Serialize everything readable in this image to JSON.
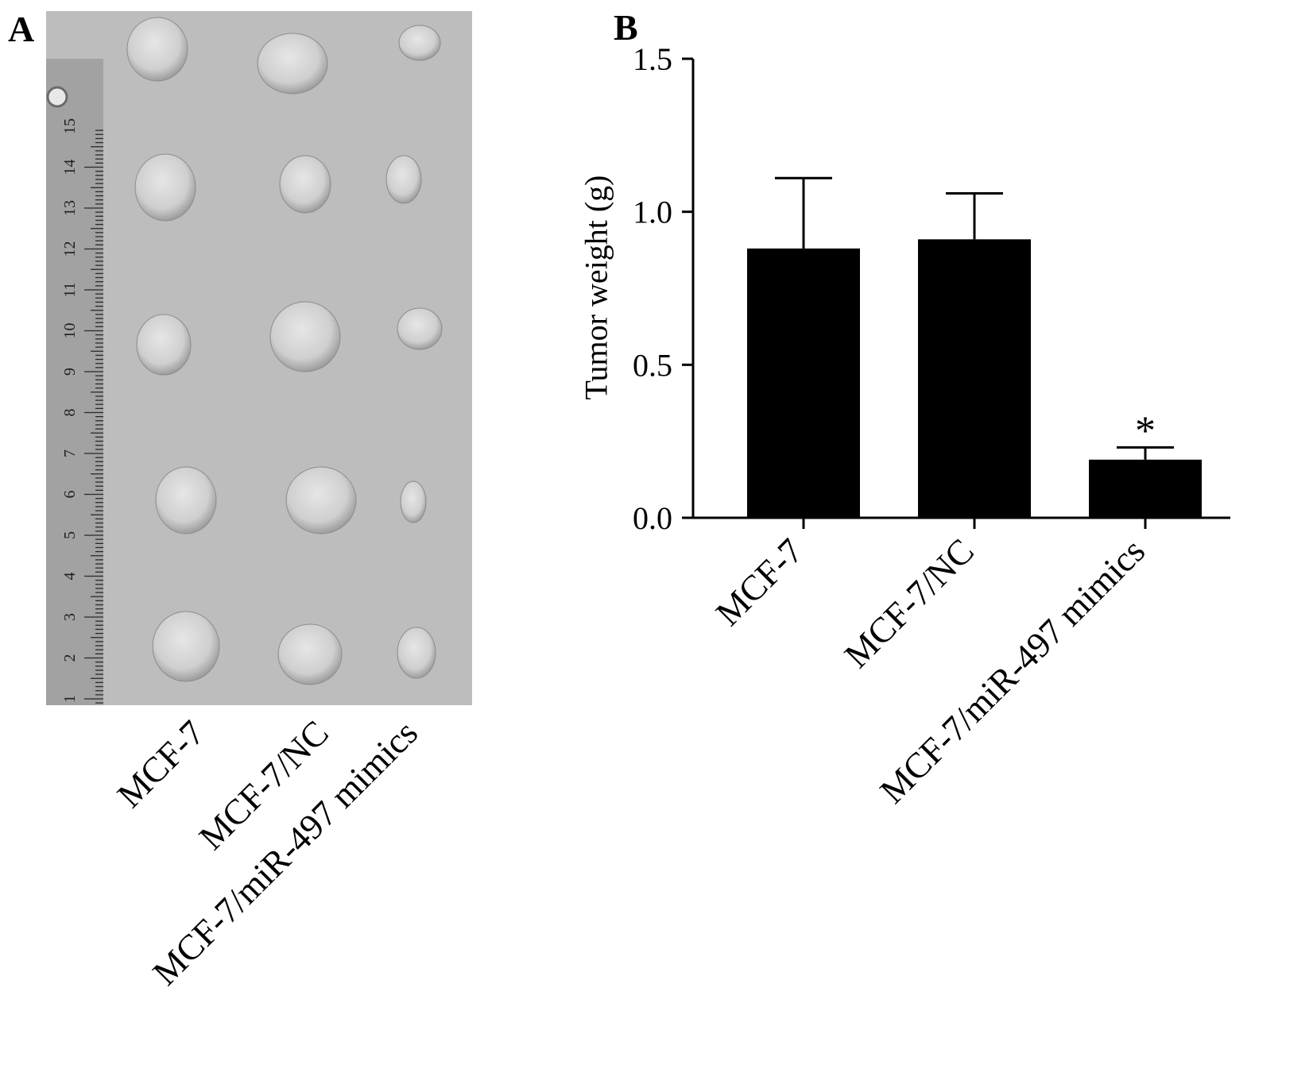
{
  "panels": {
    "a": {
      "letter": "A",
      "ruler_numbers": [
        "15",
        "14",
        "13",
        "12",
        "11",
        "10",
        "9",
        "8",
        "7",
        "6",
        "5",
        "4",
        "3",
        "2",
        "1"
      ],
      "group_labels": [
        "MCF-7",
        "MCF-7/NC",
        "MCF-7/miR-497 mimics"
      ]
    },
    "b": {
      "letter": "B"
    }
  },
  "colors": {
    "bar": "#000000",
    "photo_bg": "#bdbdbd",
    "tumor": "#dcdcdc",
    "ruler": "#9e9e9e"
  },
  "chart_data": {
    "type": "bar",
    "categories": [
      "MCF-7",
      "MCF-7/NC",
      "MCF-7/miR-497 mimics"
    ],
    "values": [
      0.88,
      0.91,
      0.19
    ],
    "error_upper": [
      0.23,
      0.15,
      0.04
    ],
    "annotations": [
      "",
      "",
      "*"
    ],
    "ylabel": "Tumor weight (g)",
    "ylim": [
      0,
      1.5
    ],
    "yticks": [
      "0.0",
      "0.5",
      "1.0",
      "1.5"
    ],
    "grid": false
  }
}
